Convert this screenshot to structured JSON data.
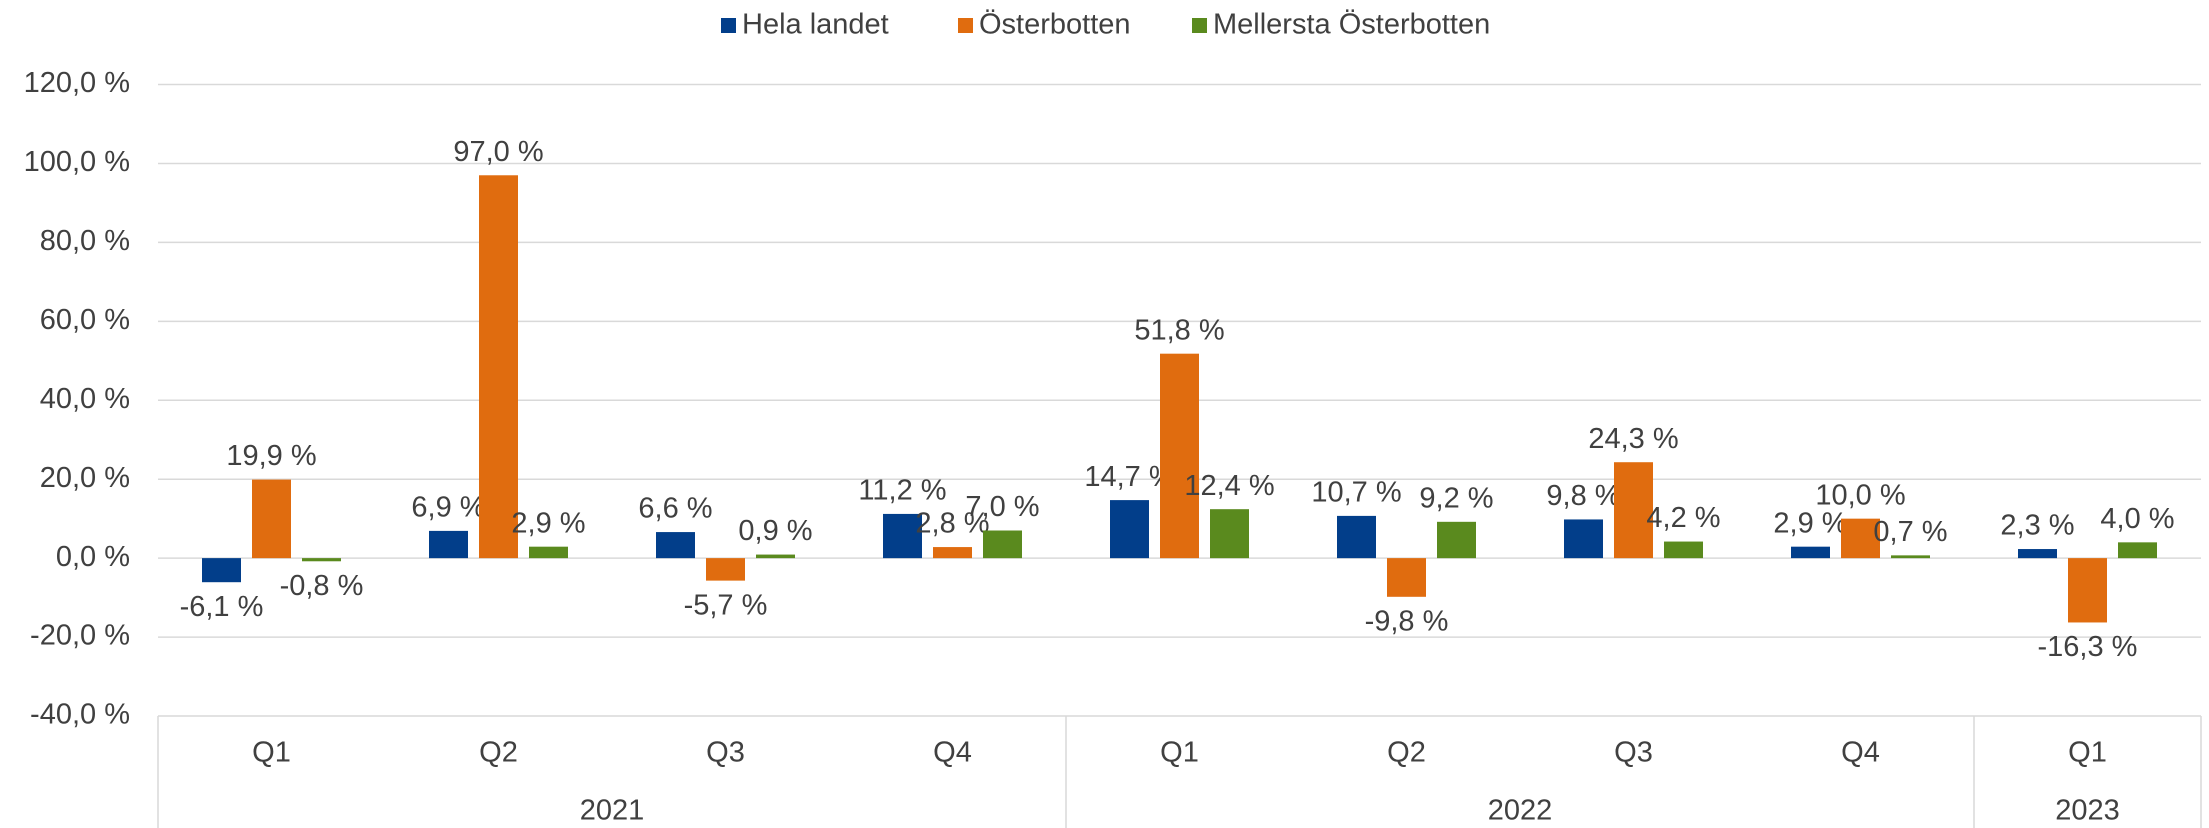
{
  "chart_data": {
    "type": "bar",
    "groups": [
      {
        "name": "2021",
        "categories": [
          "Q1",
          "Q2",
          "Q3",
          "Q4"
        ]
      },
      {
        "name": "2022",
        "categories": [
          "Q1",
          "Q2",
          "Q3",
          "Q4"
        ]
      },
      {
        "name": "2023",
        "categories": [
          "Q1"
        ]
      }
    ],
    "series": [
      {
        "name": "Hela landet",
        "color": "#023e8a",
        "values": [
          -6.1,
          6.9,
          6.6,
          11.2,
          14.7,
          10.7,
          9.8,
          2.9,
          2.3
        ],
        "value_labels": [
          "-6,1 %",
          "6,9 %",
          "6,6 %",
          "11,2 %",
          "14,7 %",
          "10,7 %",
          "9,8 %",
          "2,9 %",
          "2,3 %"
        ]
      },
      {
        "name": "Österbotten",
        "color": "#e06c0f",
        "values": [
          19.9,
          97.0,
          -5.7,
          2.8,
          51.8,
          -9.8,
          24.3,
          10.0,
          -16.3
        ],
        "value_labels": [
          "19,9 %",
          "97,0 %",
          "-5,7 %",
          "2,8 %",
          "51,8 %",
          "-9,8 %",
          "24,3 %",
          "10,0 %",
          "-16,3 %"
        ]
      },
      {
        "name": "Mellersta Österbotten",
        "color": "#5a8a1e",
        "values": [
          -0.8,
          2.9,
          0.9,
          7.0,
          12.4,
          9.2,
          4.2,
          0.7,
          4.0
        ],
        "value_labels": [
          "-0,8 %",
          "2,9 %",
          "0,9 %",
          "7,0 %",
          "12,4 %",
          "9,2 %",
          "4,2 %",
          "0,7 %",
          "4,0 %"
        ]
      }
    ],
    "ylim": [
      -40,
      120
    ],
    "yticks": [
      {
        "value": -40,
        "label": "-40,0 %"
      },
      {
        "value": -20,
        "label": "-20,0 %"
      },
      {
        "value": 0,
        "label": "0,0 %"
      },
      {
        "value": 20,
        "label": "20,0 %"
      },
      {
        "value": 40,
        "label": "40,0 %"
      },
      {
        "value": 60,
        "label": "60,0 %"
      },
      {
        "value": 80,
        "label": "80,0 %"
      },
      {
        "value": 100,
        "label": "100,0 %"
      },
      {
        "value": 120,
        "label": "120,0 %"
      }
    ],
    "grid": true,
    "legend": "top"
  }
}
